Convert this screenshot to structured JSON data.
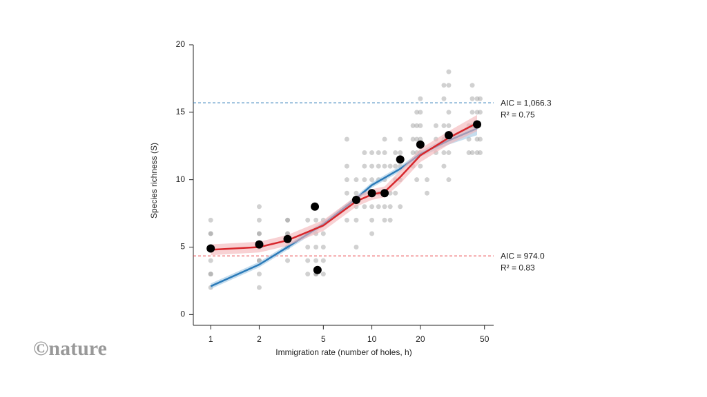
{
  "chart_data": {
    "type": "scatter",
    "x_label": "Immigration rate (number of holes, h)",
    "y_label": "Species richness (S)",
    "xscale": "log",
    "xlim": [
      0.78,
      57
    ],
    "ylim": [
      -0.8,
      20
    ],
    "xticks": [
      1,
      2,
      5,
      10,
      20,
      50
    ],
    "yticks": [
      0,
      5,
      10,
      15,
      20
    ],
    "series": [
      {
        "type": "scatter",
        "color": "#9a9a9a",
        "x": [
          1,
          1,
          1,
          1,
          1,
          1,
          1,
          1,
          1,
          2,
          2,
          2,
          2,
          2,
          2,
          2,
          2,
          2,
          3,
          3,
          3,
          3,
          3,
          3,
          3,
          4,
          4,
          4,
          4,
          4,
          4.5,
          4.5,
          4.5,
          4.5,
          4.5,
          4.5,
          5,
          5,
          5,
          5,
          5,
          7,
          7,
          7,
          7,
          7,
          7,
          8,
          8,
          8,
          8,
          8,
          9,
          9,
          9,
          9,
          9,
          10,
          10,
          10,
          10,
          10,
          10,
          10,
          11,
          11,
          11,
          11,
          11,
          12,
          12,
          12,
          12,
          12,
          12,
          12,
          13,
          13,
          13,
          13,
          14,
          14,
          14,
          14,
          15,
          15,
          15,
          15,
          15,
          18,
          18,
          18,
          18,
          19,
          19,
          19,
          19,
          19,
          20,
          20,
          20,
          20,
          20,
          20,
          22,
          22,
          25,
          25,
          25,
          28,
          28,
          28,
          28,
          28,
          28,
          30,
          30,
          30,
          30,
          30,
          30,
          30,
          40,
          40,
          40,
          42,
          42,
          42,
          42,
          42,
          45,
          45,
          45,
          45,
          45,
          47,
          47,
          47,
          47
        ],
        "values": [
          2,
          3,
          3,
          4,
          5,
          5,
          6,
          6,
          7,
          2,
          3,
          4,
          4,
          5,
          6,
          6,
          7,
          8,
          4,
          5,
          5,
          6,
          6,
          7,
          7,
          3,
          4,
          5,
          6,
          7,
          3,
          3,
          4,
          5,
          6,
          7,
          3,
          4,
          5,
          6,
          7,
          7,
          8,
          9,
          10,
          11,
          13,
          5,
          7,
          8,
          9,
          10,
          8,
          9,
          10,
          11,
          12,
          6,
          7,
          8,
          9,
          10,
          11,
          12,
          8,
          9,
          10,
          11,
          12,
          7,
          8,
          9,
          10,
          11,
          12,
          13,
          7,
          8,
          9,
          11,
          9,
          10,
          11,
          12,
          8,
          10,
          11,
          12,
          13,
          11,
          12,
          13,
          14,
          10,
          12,
          13,
          14,
          15,
          11,
          12,
          13,
          14,
          15,
          16,
          9,
          10,
          12,
          13,
          14,
          11,
          12,
          13,
          14,
          16,
          17,
          10,
          12,
          13,
          14,
          15,
          17,
          18,
          12,
          13,
          14,
          12,
          14,
          15,
          16,
          17,
          12,
          13,
          14,
          15,
          16,
          12,
          13,
          15,
          16
        ]
      },
      {
        "type": "line",
        "color": "#2b7bb9",
        "band_color": "#9fc7e3",
        "x": [
          1,
          2,
          3,
          5,
          8,
          10,
          15,
          20,
          30,
          45
        ],
        "values": [
          2.1,
          3.7,
          5.0,
          6.7,
          8.6,
          9.6,
          10.8,
          11.9,
          12.9,
          13.8
        ],
        "lower": [
          1.9,
          3.5,
          4.8,
          6.5,
          8.4,
          9.4,
          10.6,
          11.7,
          12.6,
          13.3
        ],
        "upper": [
          2.3,
          3.9,
          5.2,
          6.9,
          8.8,
          9.8,
          11.0,
          12.1,
          13.2,
          14.3
        ]
      },
      {
        "type": "line",
        "color": "#d7262b",
        "band_color": "#f4b3b5",
        "x": [
          1,
          2,
          3,
          5,
          8,
          10,
          12,
          15,
          20,
          30,
          45
        ],
        "values": [
          4.8,
          5.0,
          5.5,
          6.6,
          8.4,
          8.9,
          9.1,
          10.2,
          11.8,
          13.1,
          14.2
        ],
        "lower": [
          4.4,
          4.6,
          5.1,
          6.2,
          8.0,
          8.5,
          8.7,
          9.7,
          11.3,
          12.6,
          13.6
        ],
        "upper": [
          5.2,
          5.4,
          5.9,
          7.0,
          8.8,
          9.3,
          9.5,
          10.7,
          12.3,
          13.6,
          14.8
        ]
      },
      {
        "type": "scatter",
        "color": "#000000",
        "x": [
          1,
          2,
          3,
          4.43,
          4.6,
          8,
          10,
          12,
          15,
          20,
          30,
          45
        ],
        "values": [
          4.9,
          5.2,
          5.6,
          8,
          3.3,
          8.5,
          9,
          9,
          11.5,
          12.6,
          13.3,
          14.1
        ]
      }
    ],
    "reference_lines": [
      {
        "value": 15.7,
        "color": "#2b7bb9",
        "labels": [
          "AIC = 1,066.3",
          "R² = 0.75"
        ]
      },
      {
        "value": 4.35,
        "color": "#e8333a",
        "labels": [
          "AIC = 974.0",
          "R² = 0.83"
        ]
      }
    ]
  },
  "watermark": "©nature"
}
